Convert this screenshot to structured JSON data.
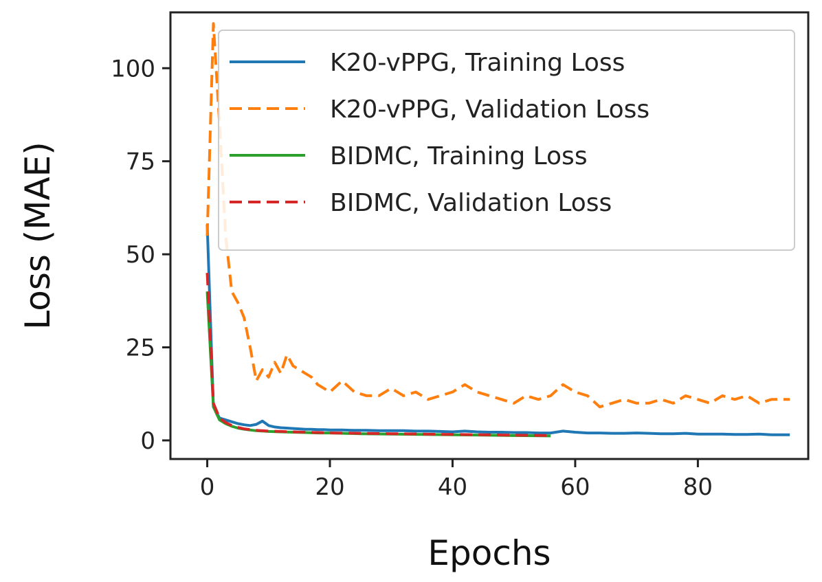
{
  "chart_data": {
    "type": "line",
    "title": "",
    "xlabel": "Epochs",
    "ylabel": "Loss (MAE)",
    "xlim": [
      -6,
      98
    ],
    "ylim": [
      -5,
      115
    ],
    "xticks": [
      0,
      20,
      40,
      60,
      80
    ],
    "yticks": [
      0,
      25,
      50,
      75,
      100
    ],
    "grid": false,
    "legend_position": "top-right",
    "series": [
      {
        "name": "K20-vPPG, Training Loss",
        "color": "#1f77b4",
        "style": "solid",
        "x": [
          0,
          1,
          2,
          3,
          4,
          5,
          6,
          7,
          8,
          9,
          10,
          11,
          12,
          13,
          14,
          15,
          16,
          17,
          18,
          19,
          20,
          22,
          24,
          26,
          28,
          30,
          32,
          34,
          36,
          38,
          40,
          42,
          44,
          46,
          48,
          50,
          52,
          54,
          56,
          58,
          60,
          62,
          64,
          66,
          68,
          70,
          72,
          74,
          76,
          78,
          80,
          82,
          84,
          86,
          88,
          90,
          92,
          95
        ],
        "y": [
          58,
          9,
          6,
          5.5,
          5,
          4.5,
          4.2,
          4,
          4.3,
          5.2,
          4,
          3.6,
          3.4,
          3.3,
          3.2,
          3.1,
          3,
          3,
          2.9,
          2.9,
          2.8,
          2.8,
          2.7,
          2.7,
          2.6,
          2.6,
          2.6,
          2.5,
          2.5,
          2.4,
          2.3,
          2.5,
          2.3,
          2.2,
          2.2,
          2.1,
          2.1,
          2,
          2,
          2.5,
          2.2,
          2,
          2,
          1.9,
          1.9,
          2,
          1.9,
          1.8,
          1.8,
          1.9,
          1.7,
          1.7,
          1.7,
          1.6,
          1.6,
          1.7,
          1.5,
          1.5
        ]
      },
      {
        "name": "K20-vPPG, Validation Loss",
        "color": "#ff7f0e",
        "style": "dashed",
        "x": [
          0,
          1,
          2,
          3,
          4,
          5,
          6,
          7,
          8,
          9,
          10,
          11,
          12,
          13,
          14,
          15,
          16,
          17,
          18,
          19,
          20,
          22,
          24,
          26,
          28,
          30,
          32,
          34,
          36,
          38,
          40,
          42,
          44,
          46,
          48,
          50,
          52,
          54,
          56,
          58,
          60,
          62,
          64,
          66,
          68,
          70,
          72,
          74,
          76,
          78,
          80,
          82,
          84,
          86,
          88,
          90,
          92,
          95
        ],
        "y": [
          55,
          112,
          85,
          55,
          40,
          37,
          33,
          25,
          16,
          19,
          17,
          21,
          18,
          23,
          20,
          19,
          18,
          17,
          15,
          14,
          13,
          16,
          13,
          12,
          12,
          14,
          12,
          13,
          11,
          12,
          13,
          15,
          13,
          12,
          11,
          10,
          12,
          11,
          12,
          15,
          13,
          12,
          9,
          10,
          11,
          10,
          10,
          11,
          10,
          12,
          11,
          10,
          12,
          11,
          12,
          10,
          11,
          11
        ]
      },
      {
        "name": "BIDMC, Training Loss",
        "color": "#2ca02c",
        "style": "solid",
        "x": [
          0,
          1,
          2,
          3,
          4,
          5,
          6,
          7,
          8,
          10,
          12,
          14,
          16,
          18,
          20,
          25,
          30,
          35,
          40,
          45,
          50,
          56
        ],
        "y": [
          40,
          9,
          5.5,
          4.5,
          3.8,
          3.3,
          3,
          2.8,
          2.6,
          2.4,
          2.3,
          2.2,
          2.1,
          2,
          2,
          1.8,
          1.7,
          1.6,
          1.5,
          1.4,
          1.3,
          1.2
        ]
      },
      {
        "name": "BIDMC, Validation Loss",
        "color": "#d62728",
        "style": "dashed",
        "x": [
          0,
          1,
          2,
          3,
          4,
          5,
          6,
          7,
          8,
          10,
          12,
          14,
          16,
          18,
          20,
          25,
          30,
          35,
          40,
          45,
          50,
          56
        ],
        "y": [
          45,
          10,
          6,
          4.8,
          4,
          3.5,
          3.1,
          2.9,
          2.7,
          2.5,
          2.4,
          2.3,
          2.2,
          2.1,
          2,
          1.9,
          1.8,
          1.7,
          1.6,
          1.5,
          1.4,
          1.3
        ]
      }
    ]
  }
}
